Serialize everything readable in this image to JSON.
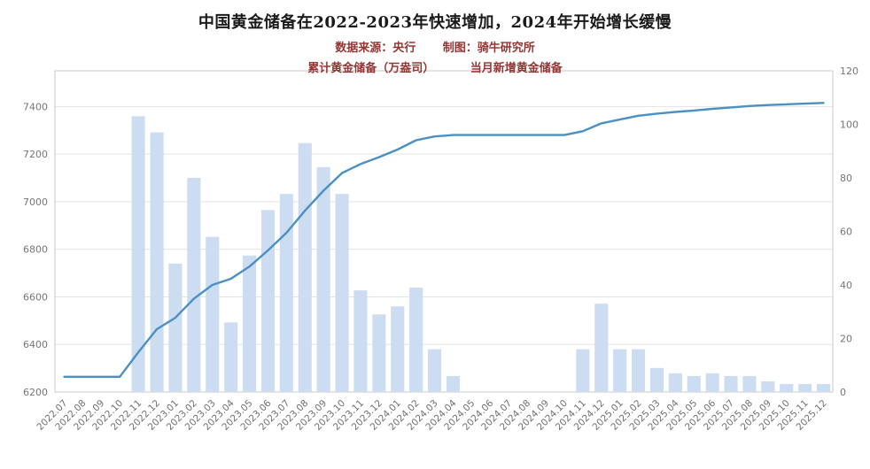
{
  "colors": {
    "title": "#1a1a1a",
    "subtitle": "#943634",
    "bar": "#ccdcf1",
    "line": "#4a90c2",
    "axis_label": "#767676",
    "grid": "#e3e3e3",
    "plot_border": "#c9c9c9"
  },
  "chart_data": {
    "type": "bar+line combo",
    "title": "中国黄金储备在2022-2023年快速增加，2024年开始增长缓慢",
    "source_note": "数据来源：央行",
    "credit_note": "制图：骑牛研究所",
    "legend_position": "top-center",
    "grid": true,
    "categories": [
      "2022.07",
      "2022.08",
      "2022.09",
      "2022.10",
      "2022.11",
      "2022.12",
      "2023.01",
      "2023.02",
      "2023.03",
      "2023.04",
      "2023.05",
      "2023.06",
      "2023.07",
      "2023.08",
      "2023.09",
      "2023.10",
      "2023.11",
      "2023.12",
      "2024.01",
      "2024.02",
      "2024.03",
      "2024.04",
      "2024.05",
      "2024.06",
      "2024.07",
      "2024.08",
      "2024.09",
      "2024.10",
      "2024.11",
      "2024.12",
      "2025.01",
      "2025.02",
      "2025.03",
      "2025.04",
      "2025.05",
      "2025.06",
      "2025.07",
      "2025.08",
      "2025.09",
      "2025.10",
      "2025.11",
      "2025.12"
    ],
    "series": [
      {
        "name": "累计黄金储备（万盎司）",
        "type": "line",
        "axis": "left",
        "values": [
          6264,
          6264,
          6264,
          6264,
          6367,
          6464,
          6512,
          6592,
          6650,
          6676,
          6727,
          6795,
          6869,
          6962,
          7046,
          7120,
          7158,
          7187,
          7219,
          7258,
          7274,
          7280,
          7280,
          7280,
          7280,
          7280,
          7280,
          7280,
          7296,
          7329,
          7345,
          7361,
          7370,
          7377,
          7383,
          7390,
          7396,
          7402,
          7406,
          7409,
          7412,
          7415
        ]
      },
      {
        "name": "当月新增黄金储备",
        "type": "bar",
        "axis": "right",
        "values": [
          0,
          0,
          0,
          0,
          103,
          97,
          48,
          80,
          58,
          26,
          51,
          68,
          74,
          93,
          84,
          74,
          38,
          29,
          32,
          39,
          16,
          6,
          0,
          0,
          0,
          0,
          0,
          0,
          16,
          33,
          16,
          16,
          9,
          7,
          6,
          7,
          6,
          6,
          4,
          3,
          3,
          3
        ]
      }
    ],
    "left_axis": {
      "min": 6200,
      "max": 7550,
      "ticks": [
        6200,
        6400,
        6600,
        6800,
        7000,
        7200,
        7400
      ]
    },
    "right_axis": {
      "min": 0,
      "max": 120,
      "ticks": [
        0,
        20,
        40,
        60,
        80,
        100,
        120
      ]
    }
  }
}
